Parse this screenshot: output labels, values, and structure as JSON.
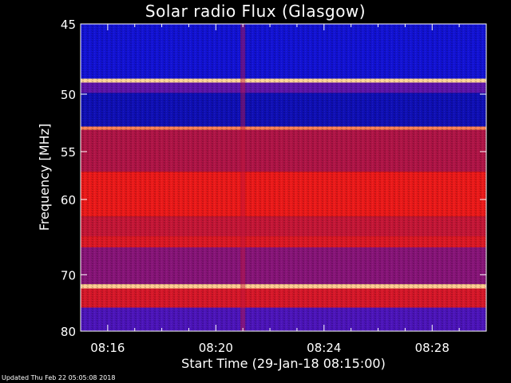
{
  "chart_data": {
    "type": "heatmap",
    "title": "Solar radio Flux (Glasgow)",
    "ylabel": "Frequency [MHz]",
    "xlabel": "Start Time (29-Jan-18 08:15:00)",
    "x_tick_labels": [
      "08:16",
      "08:20",
      "08:24",
      "08:28"
    ],
    "x_tick_minutes": [
      1,
      5,
      9,
      13
    ],
    "xlim_minutes": [
      0,
      15
    ],
    "y_tick_labels": [
      "45",
      "50",
      "55",
      "60",
      "70",
      "80"
    ],
    "y_tick_values": [
      45,
      50,
      55,
      60,
      70,
      80
    ],
    "ylim": [
      45,
      80
    ],
    "y_scale": "reciprocal",
    "grid": false,
    "bands": [
      {
        "freq_from": 45.0,
        "freq_to": 48.8,
        "level": 0.12
      },
      {
        "freq_from": 48.8,
        "freq_to": 49.1,
        "level": 0.98
      },
      {
        "freq_from": 49.1,
        "freq_to": 49.9,
        "level": 0.35
      },
      {
        "freq_from": 49.9,
        "freq_to": 52.7,
        "level": 0.08
      },
      {
        "freq_from": 52.7,
        "freq_to": 53.0,
        "level": 0.9
      },
      {
        "freq_from": 53.0,
        "freq_to": 57.0,
        "level": 0.55
      },
      {
        "freq_from": 57.0,
        "freq_to": 62.0,
        "level": 0.75
      },
      {
        "freq_from": 62.0,
        "freq_to": 64.5,
        "level": 0.62
      },
      {
        "freq_from": 64.5,
        "freq_to": 66.0,
        "level": 0.7
      },
      {
        "freq_from": 66.0,
        "freq_to": 71.5,
        "level": 0.45
      },
      {
        "freq_from": 71.5,
        "freq_to": 72.2,
        "level": 0.97
      },
      {
        "freq_from": 72.2,
        "freq_to": 75.5,
        "level": 0.68
      },
      {
        "freq_from": 75.5,
        "freq_to": 80.0,
        "level": 0.3
      }
    ],
    "events": [
      {
        "time_minutes": 6.0,
        "freq_from": 45.0,
        "freq_to": 80.0,
        "level": 0.6
      }
    ]
  },
  "footer": {
    "updated": "Updated Thu Feb 22 05:05:08 2018"
  }
}
